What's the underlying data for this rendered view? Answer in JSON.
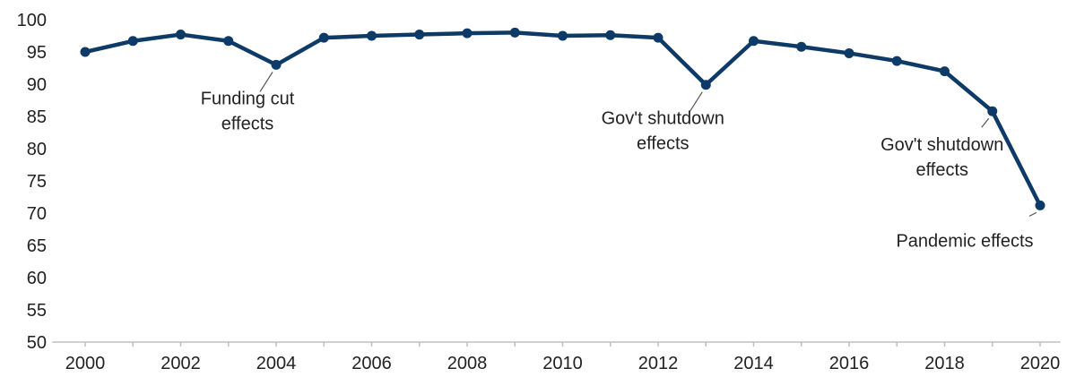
{
  "chart_data": {
    "type": "line",
    "title": "",
    "xlabel": "",
    "ylabel": "",
    "x": [
      2000,
      2001,
      2002,
      2003,
      2004,
      2005,
      2006,
      2007,
      2008,
      2009,
      2010,
      2011,
      2012,
      2013,
      2014,
      2015,
      2016,
      2017,
      2018,
      2019,
      2020
    ],
    "series": [
      {
        "values": [
          95.0,
          96.7,
          97.7,
          96.7,
          93.0,
          97.2,
          97.5,
          97.7,
          97.9,
          98.0,
          97.5,
          97.6,
          97.2,
          89.9,
          96.7,
          95.8,
          94.8,
          93.6,
          92.0,
          85.8,
          71.2
        ]
      }
    ],
    "ylim": [
      50,
      100
    ],
    "xlim": [
      2000,
      2020
    ],
    "yticks": [
      "50",
      "55",
      "60",
      "65",
      "70",
      "75",
      "80",
      "85",
      "90",
      "95",
      "100"
    ],
    "xticks": [
      "2000",
      "2002",
      "2004",
      "2006",
      "2008",
      "2010",
      "2012",
      "2014",
      "2016",
      "2018",
      "2020"
    ],
    "grid": false,
    "legend": "none",
    "line_color": "#0d3a66",
    "annotations": [
      {
        "x": 2004,
        "lines": [
          "Funding cut",
          "effects"
        ]
      },
      {
        "x": 2013,
        "lines": [
          "Gov't shutdown",
          "effects"
        ]
      },
      {
        "x": 2019,
        "lines": [
          "Gov't shutdown",
          "effects"
        ]
      },
      {
        "x": 2020,
        "lines": [
          "Pandemic effects"
        ]
      }
    ]
  }
}
